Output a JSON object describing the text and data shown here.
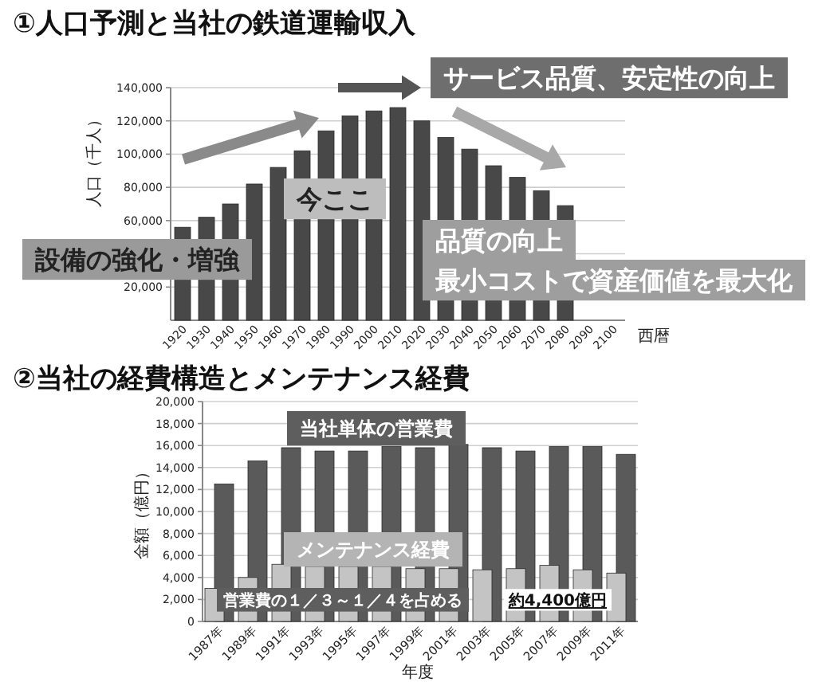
{
  "chart_data": [
    {
      "type": "bar",
      "title": "①人口予測と当社の鉄道運輸収入",
      "xlabel": "西暦",
      "ylabel": "人口（千人）",
      "categories": [
        "1920",
        "1930",
        "1940",
        "1950",
        "1960",
        "1970",
        "1980",
        "1990",
        "2000",
        "2010",
        "2020",
        "2030",
        "2040",
        "2050",
        "2060",
        "2070",
        "2080",
        "2090",
        "2100"
      ],
      "values": [
        56000,
        62000,
        70000,
        82000,
        92000,
        102000,
        114000,
        123000,
        126000,
        128000,
        120000,
        110000,
        103000,
        93000,
        86000,
        78000,
        69000,
        null,
        null
      ],
      "color": "#484848",
      "ylim": [
        0,
        140000
      ],
      "yticks": [
        {
          "value": 20000,
          "label": "20,000"
        },
        {
          "value": 40000,
          "label": null
        },
        {
          "value": 60000,
          "label": "60,000"
        },
        {
          "value": 80000,
          "label": "80,000"
        },
        {
          "value": 100000,
          "label": "100,000"
        },
        {
          "value": 120000,
          "label": "120,000"
        },
        {
          "value": 140000,
          "label": "140,000"
        }
      ],
      "grid": "y",
      "annotations": [
        "設備の強化・増強",
        "今ここ",
        "サービス品質、安定性の向上",
        "品質の向上",
        "最小コストで資産価値を最大化"
      ]
    },
    {
      "type": "bar",
      "title": "②当社の経費構造とメンテナンス経費",
      "xlabel": "年度",
      "ylabel": "金額（億円）",
      "categories": [
        "1987年",
        "1989年",
        "1991年",
        "1993年",
        "1995年",
        "1997年",
        "1999年",
        "2001年",
        "2003年",
        "2005年",
        "2007年",
        "2009年",
        "2011年"
      ],
      "series": [
        {
          "name": "当社単体の営業費",
          "color": "#5a5a5a",
          "values": [
            12500,
            14600,
            15800,
            15500,
            15500,
            15900,
            15800,
            16100,
            15800,
            15500,
            15900,
            15900,
            15200
          ]
        },
        {
          "name": "メンテナンス経費",
          "color": "#c4c4c4",
          "values": [
            3000,
            4000,
            5200,
            5000,
            5000,
            5000,
            4800,
            4800,
            4700,
            4800,
            5100,
            4700,
            4400
          ]
        }
      ],
      "ylim": [
        0,
        20000
      ],
      "yticks": [
        0,
        {
          "value": 2000,
          "label": "2,000"
        },
        {
          "value": 4000,
          "label": "4,000"
        },
        {
          "value": 6000,
          "label": "6,000"
        },
        {
          "value": 8000,
          "label": "8,000"
        },
        {
          "value": 10000,
          "label": "10,000"
        },
        {
          "value": 12000,
          "label": "12,000"
        },
        {
          "value": 14000,
          "label": "14,000"
        },
        {
          "value": 16000,
          "label": "16,000"
        },
        {
          "value": 18000,
          "label": "18,000"
        },
        {
          "value": 20000,
          "label": "20,000"
        }
      ],
      "grid": "y",
      "annotations": [
        "営業費の１／３～１／４を占める",
        {
          "text": "約4,400億円",
          "x": "2011年",
          "y": 4400
        }
      ]
    }
  ]
}
